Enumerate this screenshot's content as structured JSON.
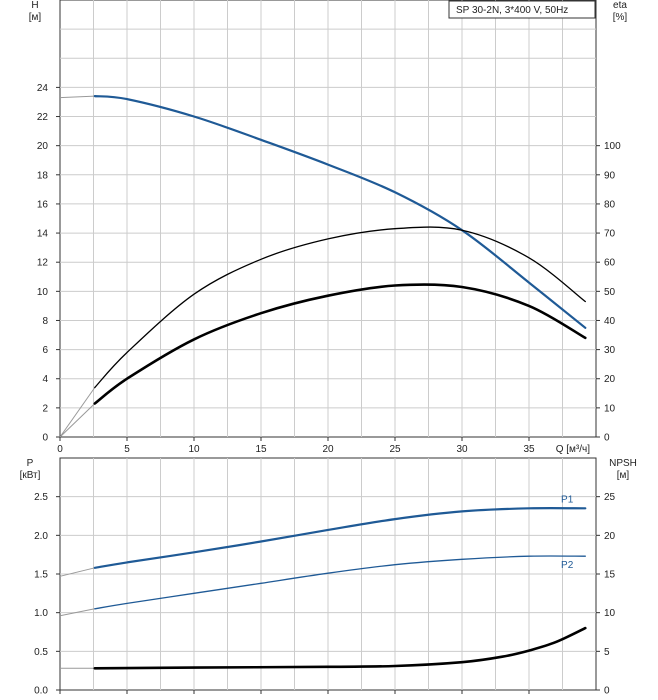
{
  "colors": {
    "blue": "#1f5a96",
    "black": "#000000",
    "grid": "#cccccc",
    "axis": "#333333",
    "extension": "#999999"
  },
  "chart_data": [
    {
      "type": "line",
      "title": "SP 30-2N, 3*400 V, 50Hz",
      "ylabel": "H",
      "ylabel_unit": "[м]",
      "y2label": "eta",
      "y2label_unit": "[%]",
      "xlabel": "Q",
      "xlabel_unit": "[м³/ч]",
      "xlim": [
        0,
        40
      ],
      "ylim": [
        0,
        30
      ],
      "y2lim": [
        0,
        150
      ],
      "x_ticks": [
        0,
        5,
        10,
        15,
        20,
        25,
        30,
        35
      ],
      "y_ticks": [
        0,
        2,
        4,
        6,
        8,
        10,
        12,
        14,
        16,
        18,
        20,
        22,
        24
      ],
      "y2_ticks": [
        0,
        10,
        20,
        30,
        40,
        50,
        60,
        70,
        80,
        90,
        100
      ],
      "grid": true,
      "series": [
        {
          "axis": "left",
          "color": "blue",
          "width": 2.2,
          "x": [
            2.6,
            5,
            10,
            15,
            20,
            25,
            30,
            35,
            39.2
          ],
          "y": [
            23.4,
            23.2,
            22.0,
            20.4,
            18.7,
            16.8,
            14.2,
            10.6,
            7.5
          ],
          "ext_x": [
            0,
            2.6
          ],
          "ext_y": [
            23.3,
            23.4
          ]
        },
        {
          "axis": "right",
          "color": "black",
          "width": 1.3,
          "x": [
            2.6,
            5,
            10,
            15,
            20,
            25,
            30,
            35,
            39.2
          ],
          "y": [
            17,
            29,
            49,
            61,
            68,
            71.5,
            71,
            61.5,
            46.5
          ],
          "ext_x": [
            0,
            2.6
          ],
          "ext_y": [
            0,
            17
          ]
        },
        {
          "axis": "right",
          "color": "black",
          "width": 2.6,
          "x": [
            2.6,
            5,
            10,
            15,
            20,
            25,
            30,
            35,
            39.2
          ],
          "y": [
            11.5,
            20,
            33.5,
            42.5,
            48.5,
            52,
            51.5,
            45,
            34
          ],
          "ext_x": [
            0,
            2.6
          ],
          "ext_y": [
            0,
            11.5
          ]
        }
      ]
    },
    {
      "type": "line",
      "ylabel": "P",
      "ylabel_unit": "[кВт]",
      "y2label": "NPSH",
      "y2label_unit": "[м]",
      "xlim": [
        0,
        40
      ],
      "ylim": [
        0,
        3
      ],
      "y2lim": [
        0,
        30
      ],
      "y_ticks": [
        0.0,
        0.5,
        1.0,
        1.5,
        2.0,
        2.5
      ],
      "y_tick_labels": [
        "0.0",
        "0.5",
        "1.0",
        "1.5",
        "2.0",
        "2.5"
      ],
      "y2_ticks": [
        0,
        5,
        10,
        15,
        20,
        25
      ],
      "grid": true,
      "series": [
        {
          "name": "P1",
          "axis": "left",
          "color": "blue",
          "width": 2.2,
          "x": [
            2.6,
            5,
            10,
            15,
            20,
            25,
            30,
            35,
            39.2
          ],
          "y": [
            1.58,
            1.65,
            1.78,
            1.92,
            2.07,
            2.21,
            2.31,
            2.35,
            2.35
          ],
          "ext_x": [
            0,
            2.6
          ],
          "ext_y": [
            1.47,
            1.58
          ]
        },
        {
          "name": "P2",
          "axis": "left",
          "color": "blue",
          "width": 1.3,
          "x": [
            2.6,
            5,
            10,
            15,
            20,
            25,
            30,
            35,
            39.2
          ],
          "y": [
            1.05,
            1.12,
            1.25,
            1.38,
            1.51,
            1.62,
            1.69,
            1.73,
            1.73
          ],
          "ext_x": [
            0,
            2.6
          ],
          "ext_y": [
            0.96,
            1.05
          ]
        },
        {
          "axis": "right",
          "color": "black",
          "width": 2.6,
          "x": [
            2.6,
            10,
            20,
            25,
            30,
            33,
            35,
            37,
            39.2
          ],
          "y": [
            2.8,
            2.9,
            3.0,
            3.1,
            3.6,
            4.3,
            5.1,
            6.2,
            8.0
          ],
          "ext_x": [
            0,
            2.6
          ],
          "ext_y": [
            2.8,
            2.8
          ]
        }
      ]
    }
  ]
}
